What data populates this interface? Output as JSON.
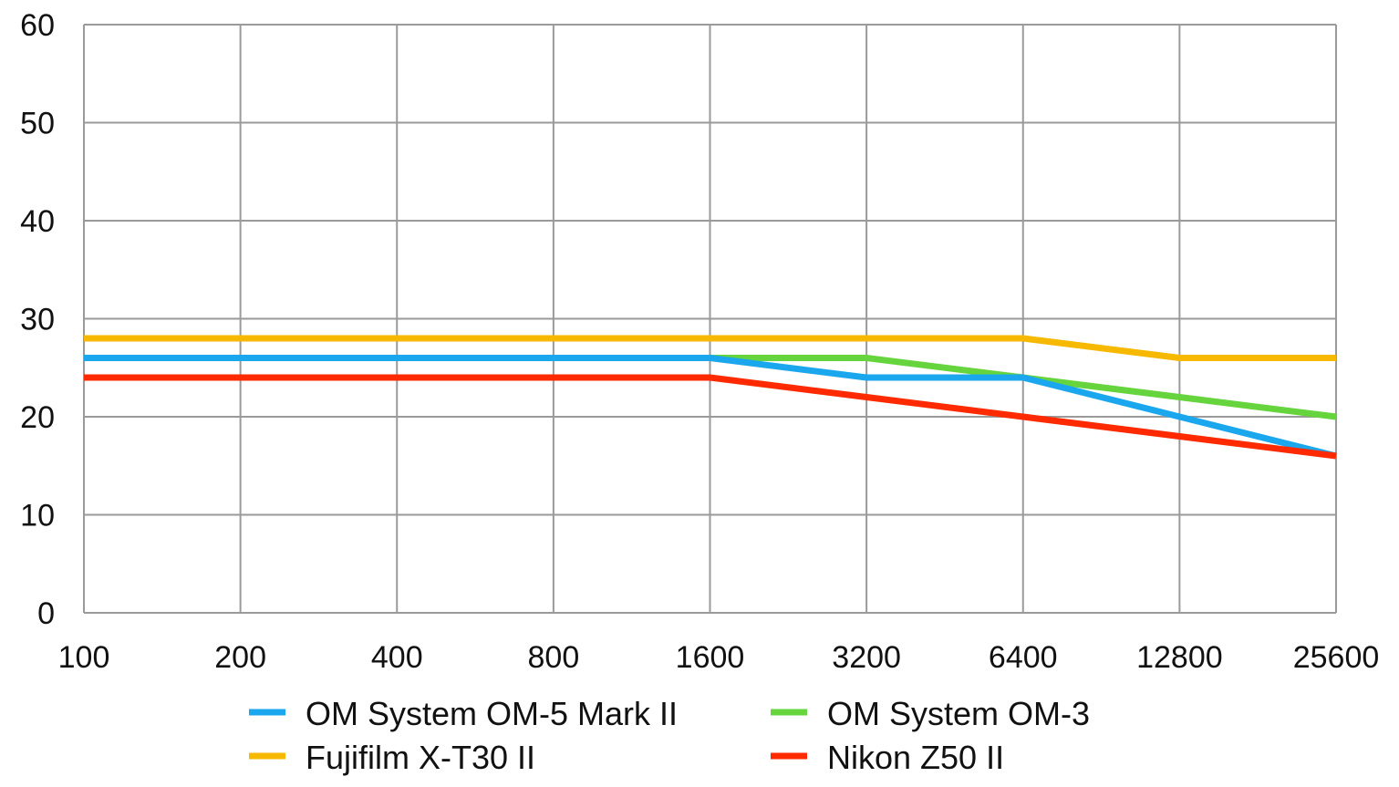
{
  "chart_data": {
    "type": "line",
    "title": "",
    "xlabel": "",
    "ylabel": "",
    "x": [
      "100",
      "200",
      "400",
      "800",
      "1600",
      "3200",
      "6400",
      "12800",
      "25600"
    ],
    "ylim": [
      0,
      60
    ],
    "yticks": [
      0,
      10,
      20,
      30,
      40,
      50,
      60
    ],
    "grid": true,
    "legend_position": "bottom",
    "series": [
      {
        "name": "OM System OM-5 Mark II",
        "color": "#1aa7ee",
        "values": [
          26,
          26,
          26,
          26,
          26,
          24,
          24,
          20,
          16
        ]
      },
      {
        "name": "OM System OM-3",
        "color": "#66d43c",
        "values": [
          26,
          26,
          26,
          26,
          26,
          26,
          24,
          22,
          20
        ]
      },
      {
        "name": "Fujifilm X-T30 II",
        "color": "#f7b900",
        "values": [
          28,
          28,
          28,
          28,
          28,
          28,
          28,
          26,
          26
        ]
      },
      {
        "name": "Nikon Z50 II",
        "color": "#ff2a00",
        "values": [
          24,
          24,
          24,
          24,
          24,
          22,
          20,
          18,
          16
        ]
      }
    ]
  }
}
